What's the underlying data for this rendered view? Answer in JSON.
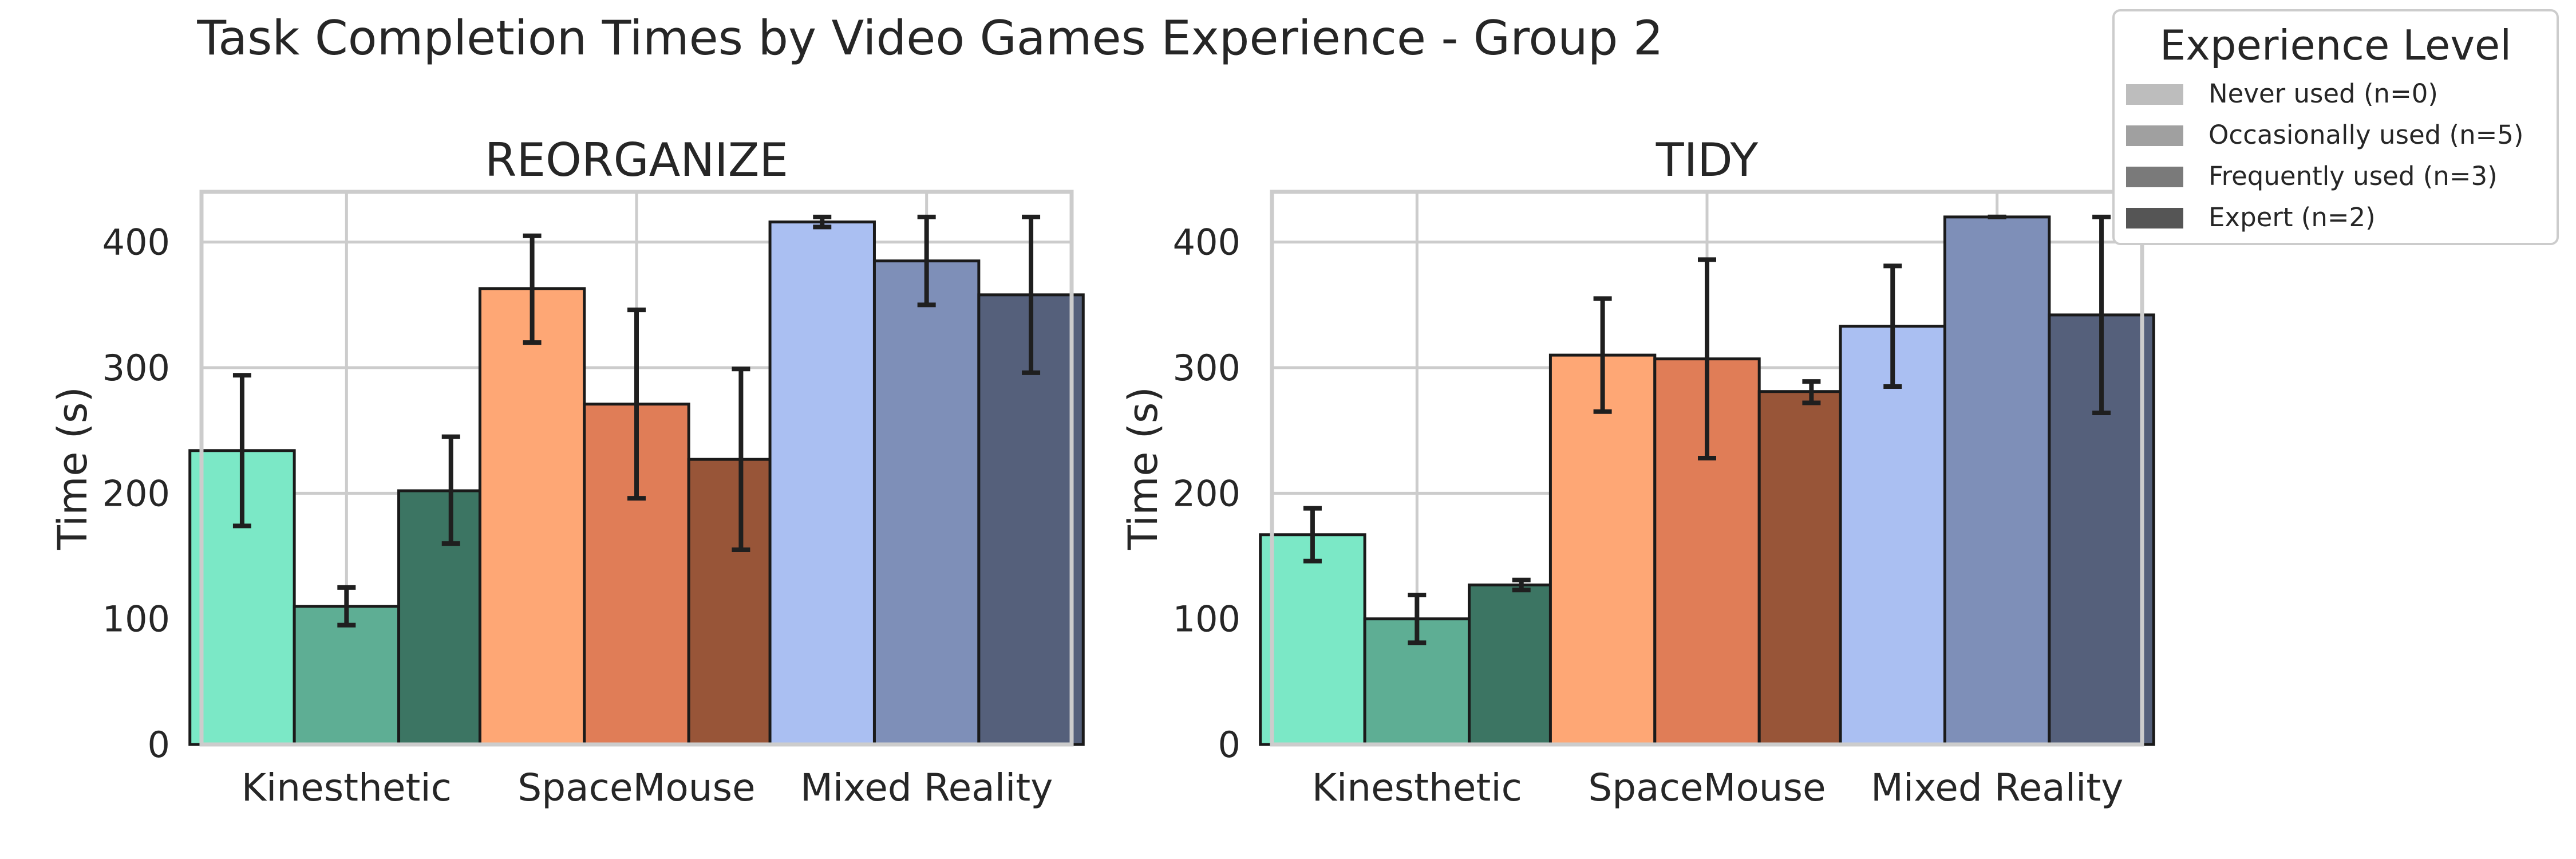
{
  "figure": {
    "title": "Task Completion Times by Video Games Experience - Group 2"
  },
  "legend": {
    "title": "Experience Level",
    "items": [
      {
        "label": "Never used (n=0)",
        "color": "#bdbdbd"
      },
      {
        "label": "Occasionally used (n=5)",
        "color": "#a0a0a0"
      },
      {
        "label": "Frequently used (n=3)",
        "color": "#7a7a7a"
      },
      {
        "label": "Expert (n=2)",
        "color": "#555555"
      }
    ]
  },
  "chart_data": [
    {
      "type": "bar",
      "title": "REORGANIZE",
      "ylabel": "Time (s)",
      "xlabel": "",
      "ylim": [
        0,
        440
      ],
      "yticks": [
        0,
        100,
        200,
        300,
        400
      ],
      "categories": [
        "Kinesthetic",
        "SpaceMouse",
        "Mixed Reality"
      ],
      "category_colors": [
        [
          "#7be8c6",
          "#5eae94",
          "#3c7563"
        ],
        [
          "#fea775",
          "#e07d57",
          "#985538"
        ],
        [
          "#aabff2",
          "#7e8fb8",
          "#55607b"
        ]
      ],
      "series": [
        {
          "name": "Occasionally used (n=5)",
          "values": [
            234,
            363,
            416
          ],
          "err_low": [
            174,
            320,
            412
          ],
          "err_high": [
            294,
            405,
            420
          ]
        },
        {
          "name": "Frequently used (n=3)",
          "values": [
            110,
            271,
            385
          ],
          "err_low": [
            95,
            196,
            350
          ],
          "err_high": [
            125,
            346,
            420
          ]
        },
        {
          "name": "Expert (n=2)",
          "values": [
            202,
            227,
            358
          ],
          "err_low": [
            160,
            155,
            296
          ],
          "err_high": [
            245,
            299,
            420
          ]
        }
      ]
    },
    {
      "type": "bar",
      "title": "TIDY",
      "ylabel": "Time (s)",
      "xlabel": "",
      "ylim": [
        0,
        440
      ],
      "yticks": [
        0,
        100,
        200,
        300,
        400
      ],
      "categories": [
        "Kinesthetic",
        "SpaceMouse",
        "Mixed Reality"
      ],
      "category_colors": [
        [
          "#7be8c6",
          "#5eae94",
          "#3c7563"
        ],
        [
          "#fea775",
          "#e07d57",
          "#985538"
        ],
        [
          "#aabff2",
          "#7e8fb8",
          "#55607b"
        ]
      ],
      "series": [
        {
          "name": "Occasionally used (n=5)",
          "values": [
            167,
            310,
            333
          ],
          "err_low": [
            146,
            265,
            285
          ],
          "err_high": [
            188,
            355,
            381
          ]
        },
        {
          "name": "Frequently used (n=3)",
          "values": [
            100,
            307,
            420
          ],
          "err_low": [
            81,
            228,
            420
          ],
          "err_high": [
            119,
            386,
            420
          ]
        },
        {
          "name": "Expert (n=2)",
          "values": [
            127,
            281,
            342
          ],
          "err_low": [
            123,
            272,
            264
          ],
          "err_high": [
            131,
            289,
            420
          ]
        }
      ]
    }
  ]
}
